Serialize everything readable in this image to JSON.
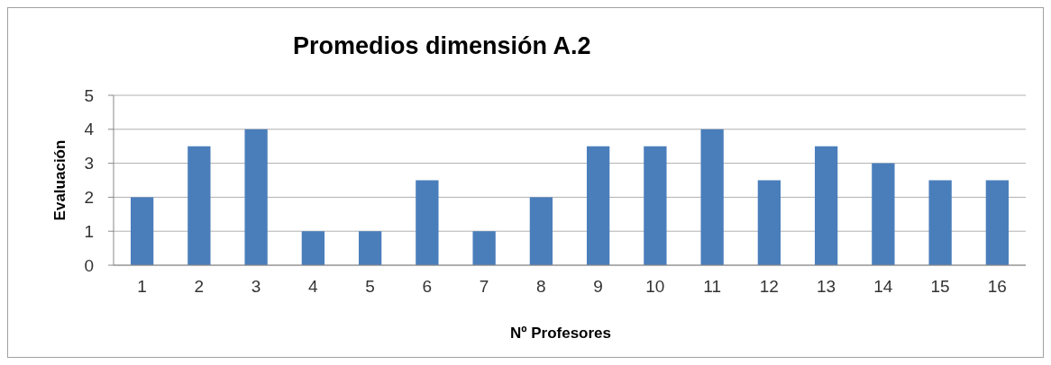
{
  "chart_data": {
    "type": "bar",
    "title": "Promedios dimensión A.2",
    "xlabel": "Nº Profesores",
    "ylabel": "Evaluación",
    "categories": [
      "1",
      "2",
      "3",
      "4",
      "5",
      "6",
      "7",
      "8",
      "9",
      "10",
      "11",
      "12",
      "13",
      "14",
      "15",
      "16"
    ],
    "values": [
      2,
      3.5,
      4,
      1,
      1,
      2.5,
      1,
      2,
      3.5,
      3.5,
      4,
      2.5,
      3.5,
      3,
      2.5,
      2.5
    ],
    "color": "#4a7ebb",
    "ylim": [
      0,
      5
    ],
    "yticks": [
      0,
      1,
      2,
      3,
      4,
      5
    ],
    "grid": "y"
  }
}
